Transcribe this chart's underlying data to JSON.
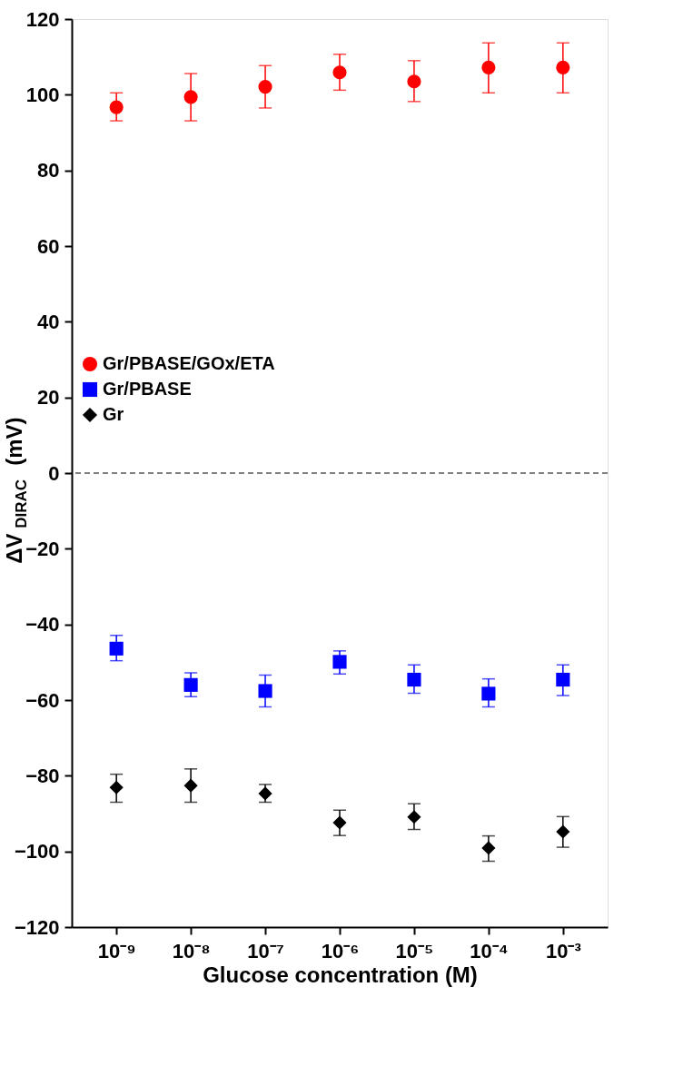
{
  "chart_data": {
    "type": "scatter",
    "xlabel": "Glucose concentration (M)",
    "ylabel": "ΔV$_{DIRAC}$ (mV)",
    "categories": [
      "10⁻⁹",
      "10⁻⁸",
      "10⁻⁷",
      "10⁻⁶",
      "10⁻⁵",
      "10⁻⁴",
      "10⁻³"
    ],
    "ylim": [
      -120,
      120
    ],
    "yticks": [
      -120,
      -100,
      -80,
      -60,
      -40,
      -20,
      0,
      20,
      40,
      60,
      80,
      100,
      120
    ],
    "grid": false,
    "legend": "left",
    "series": [
      {
        "name": "Gr/PBASE/GOx/ETA",
        "color": "#ff0000",
        "marker": "circle",
        "values": [
          96.7,
          99.4,
          102.1,
          105.9,
          103.5,
          107.2,
          107.2
        ],
        "errors": [
          [
            93.1,
            100.5
          ],
          [
            93.1,
            105.6
          ],
          [
            96.5,
            107.7
          ],
          [
            101.2,
            110.7
          ],
          [
            98.2,
            109.0
          ],
          [
            100.5,
            113.7
          ],
          [
            100.5,
            113.7
          ]
        ]
      },
      {
        "name": "Gr/PBASE",
        "color": "#0000ff",
        "marker": "square",
        "values": [
          -46.4,
          -56.0,
          -57.6,
          -49.9,
          -54.6,
          -58.3,
          -54.6
        ],
        "errors": [
          [
            -49.6,
            -42.9
          ],
          [
            -59.1,
            -52.8
          ],
          [
            -61.8,
            -53.4
          ],
          [
            -53.1,
            -47.0
          ],
          [
            -58.2,
            -50.7
          ],
          [
            -61.8,
            -54.4
          ],
          [
            -58.8,
            -50.7
          ]
        ]
      },
      {
        "name": "Gr",
        "color": "#000000",
        "marker": "diamond",
        "values": [
          -83.1,
          -82.6,
          -84.7,
          -92.4,
          -90.9,
          -99.1,
          -94.8
        ],
        "errors": [
          [
            -87.0,
            -79.6
          ],
          [
            -87.0,
            -78.2
          ],
          [
            -87.0,
            -82.3
          ],
          [
            -95.8,
            -89.1
          ],
          [
            -94.2,
            -87.4
          ],
          [
            -102.6,
            -95.9
          ],
          [
            -98.9,
            -90.8
          ]
        ]
      }
    ],
    "ref_lines": [
      {
        "axis": "y",
        "value": 0,
        "label": null,
        "color": "#000000",
        "line_style": "dashed"
      }
    ]
  }
}
